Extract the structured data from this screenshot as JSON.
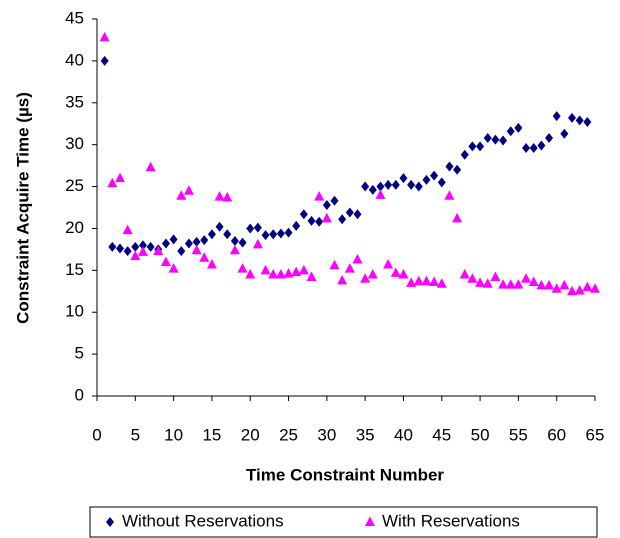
{
  "chart_data": {
    "type": "scatter",
    "xlabel": "Time Constraint Number",
    "ylabel": "Constraint Acquire Time (µs)",
    "xlim": [
      0,
      65
    ],
    "xticks": [
      0,
      5,
      10,
      15,
      20,
      25,
      30,
      35,
      40,
      45,
      50,
      55,
      60,
      65
    ],
    "ylim": [
      0,
      45
    ],
    "yticks": [
      0,
      5,
      10,
      15,
      20,
      25,
      30,
      35,
      40,
      45
    ],
    "grid": false,
    "legend": "bottom",
    "series": [
      {
        "name": "Without Reservations",
        "color": "#000080",
        "marker": "diamond",
        "x": [
          1,
          2,
          3,
          4,
          5,
          6,
          7,
          8,
          9,
          10,
          11,
          12,
          13,
          14,
          15,
          16,
          17,
          18,
          19,
          20,
          21,
          22,
          23,
          24,
          25,
          26,
          27,
          28,
          29,
          30,
          31,
          32,
          33,
          34,
          35,
          36,
          37,
          38,
          39,
          40,
          41,
          42,
          43,
          44,
          45,
          46,
          47,
          48,
          49,
          50,
          51,
          52,
          53,
          54,
          55,
          56,
          57,
          58,
          59,
          60,
          61,
          62,
          63,
          64
        ],
        "values": [
          40,
          17.8,
          17.6,
          17.3,
          17.8,
          18.0,
          17.8,
          17.5,
          18.2,
          18.7,
          17.3,
          18.2,
          18.4,
          18.6,
          19.3,
          20.2,
          19.3,
          18.5,
          18.3,
          20.0,
          20.1,
          19.2,
          19.3,
          19.4,
          19.5,
          20.3,
          21.7,
          20.9,
          20.8,
          22.8,
          23.3,
          21.1,
          21.9,
          21.7,
          25.0,
          24.6,
          25.0,
          25.2,
          25.2,
          26.0,
          25.2,
          25.0,
          25.8,
          26.3,
          25.5,
          27.4,
          27.0,
          28.8,
          29.8,
          29.8,
          30.8,
          30.6,
          30.5,
          31.6,
          32.0,
          29.6,
          29.6,
          29.9,
          30.8,
          33.4,
          31.3,
          33.2,
          32.9,
          32.7
        ]
      },
      {
        "name": "With Reservations",
        "color": "#ff00ff",
        "marker": "triangle",
        "x": [
          1,
          2,
          3,
          4,
          5,
          6,
          7,
          8,
          9,
          10,
          11,
          12,
          13,
          14,
          15,
          16,
          17,
          18,
          19,
          20,
          21,
          22,
          23,
          24,
          25,
          26,
          27,
          28,
          29,
          30,
          31,
          32,
          33,
          34,
          35,
          36,
          37,
          38,
          39,
          40,
          41,
          42,
          43,
          44,
          45,
          46,
          47,
          48,
          49,
          50,
          51,
          52,
          53,
          54,
          55,
          56,
          57,
          58,
          59,
          60,
          61,
          62,
          63,
          64,
          65
        ],
        "values": [
          42.8,
          25.4,
          26.0,
          19.8,
          16.7,
          17.2,
          27.3,
          17.3,
          16.0,
          15.2,
          23.9,
          24.5,
          17.4,
          16.5,
          15.7,
          23.8,
          23.7,
          17.4,
          15.2,
          14.5,
          18.1,
          15.0,
          14.5,
          14.5,
          14.6,
          14.8,
          15.0,
          14.2,
          23.8,
          21.2,
          15.6,
          13.8,
          15.2,
          16.3,
          14.0,
          14.5,
          24.0,
          15.7,
          14.7,
          14.5,
          13.5,
          13.7,
          13.7,
          13.6,
          13.4,
          23.9,
          21.2,
          14.5,
          14.0,
          13.5,
          13.4,
          14.2,
          13.3,
          13.3,
          13.3,
          14.0,
          13.6,
          13.2,
          13.2,
          12.8,
          13.2,
          12.5,
          12.6,
          13.0,
          12.8
        ]
      }
    ]
  }
}
